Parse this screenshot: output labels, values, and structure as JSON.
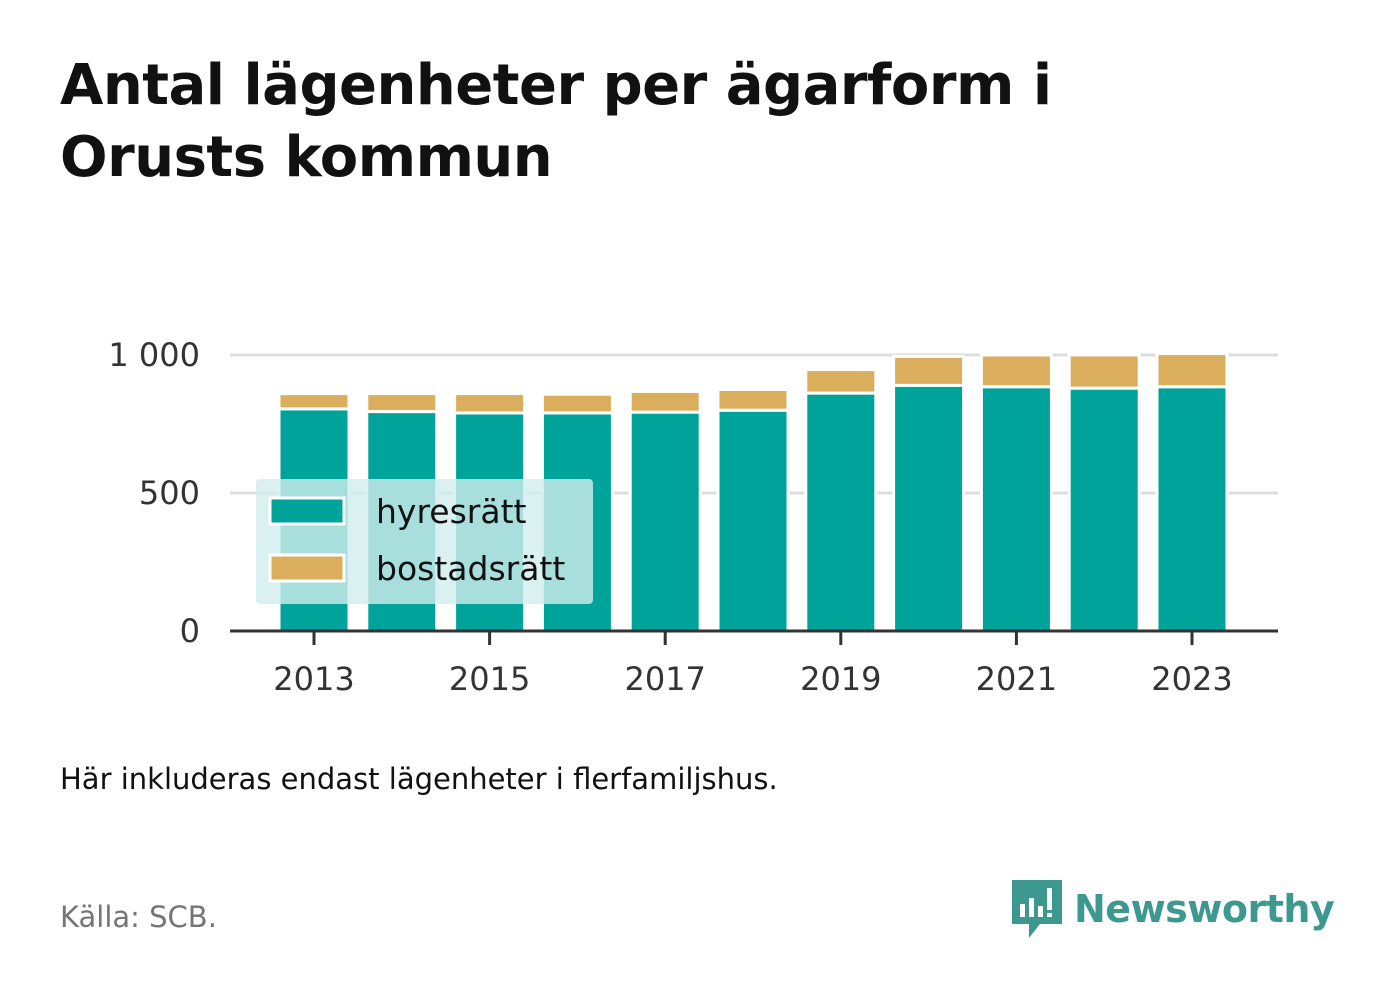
{
  "title": "Antal lägenheter per ägarform i Orusts kommun",
  "note": "Här inkluderas endast lägenheter i flerfamiljshus.",
  "source": "Källa: SCB.",
  "brand": "Newsworthy",
  "colors": {
    "hyresratt": "#00a39a",
    "bostadsratt": "#daae5c",
    "grid": "#dddddd",
    "axis": "#333333",
    "legend_bg": "#d2eeee",
    "brand": "#3d9990"
  },
  "chart_data": {
    "type": "bar",
    "stacked": true,
    "categories": [
      "2013",
      "2014",
      "2015",
      "2016",
      "2017",
      "2018",
      "2019",
      "2020",
      "2021",
      "2022",
      "2023"
    ],
    "x_tick_labels": [
      "2013",
      "2015",
      "2017",
      "2019",
      "2021",
      "2023"
    ],
    "y_tick_labels": [
      "0",
      "500",
      "1 000"
    ],
    "y_ticks": [
      0,
      500,
      1000
    ],
    "ylim": [
      0,
      1000
    ],
    "grid": true,
    "legend_position": "bottom-left inside",
    "series": [
      {
        "name": "hyresrätt",
        "values": [
          805,
          795,
          790,
          790,
          793,
          800,
          862,
          890,
          885,
          880,
          885
        ]
      },
      {
        "name": "bostadsrätt",
        "values": [
          55,
          65,
          70,
          68,
          75,
          75,
          85,
          105,
          115,
          120,
          120
        ]
      }
    ]
  }
}
